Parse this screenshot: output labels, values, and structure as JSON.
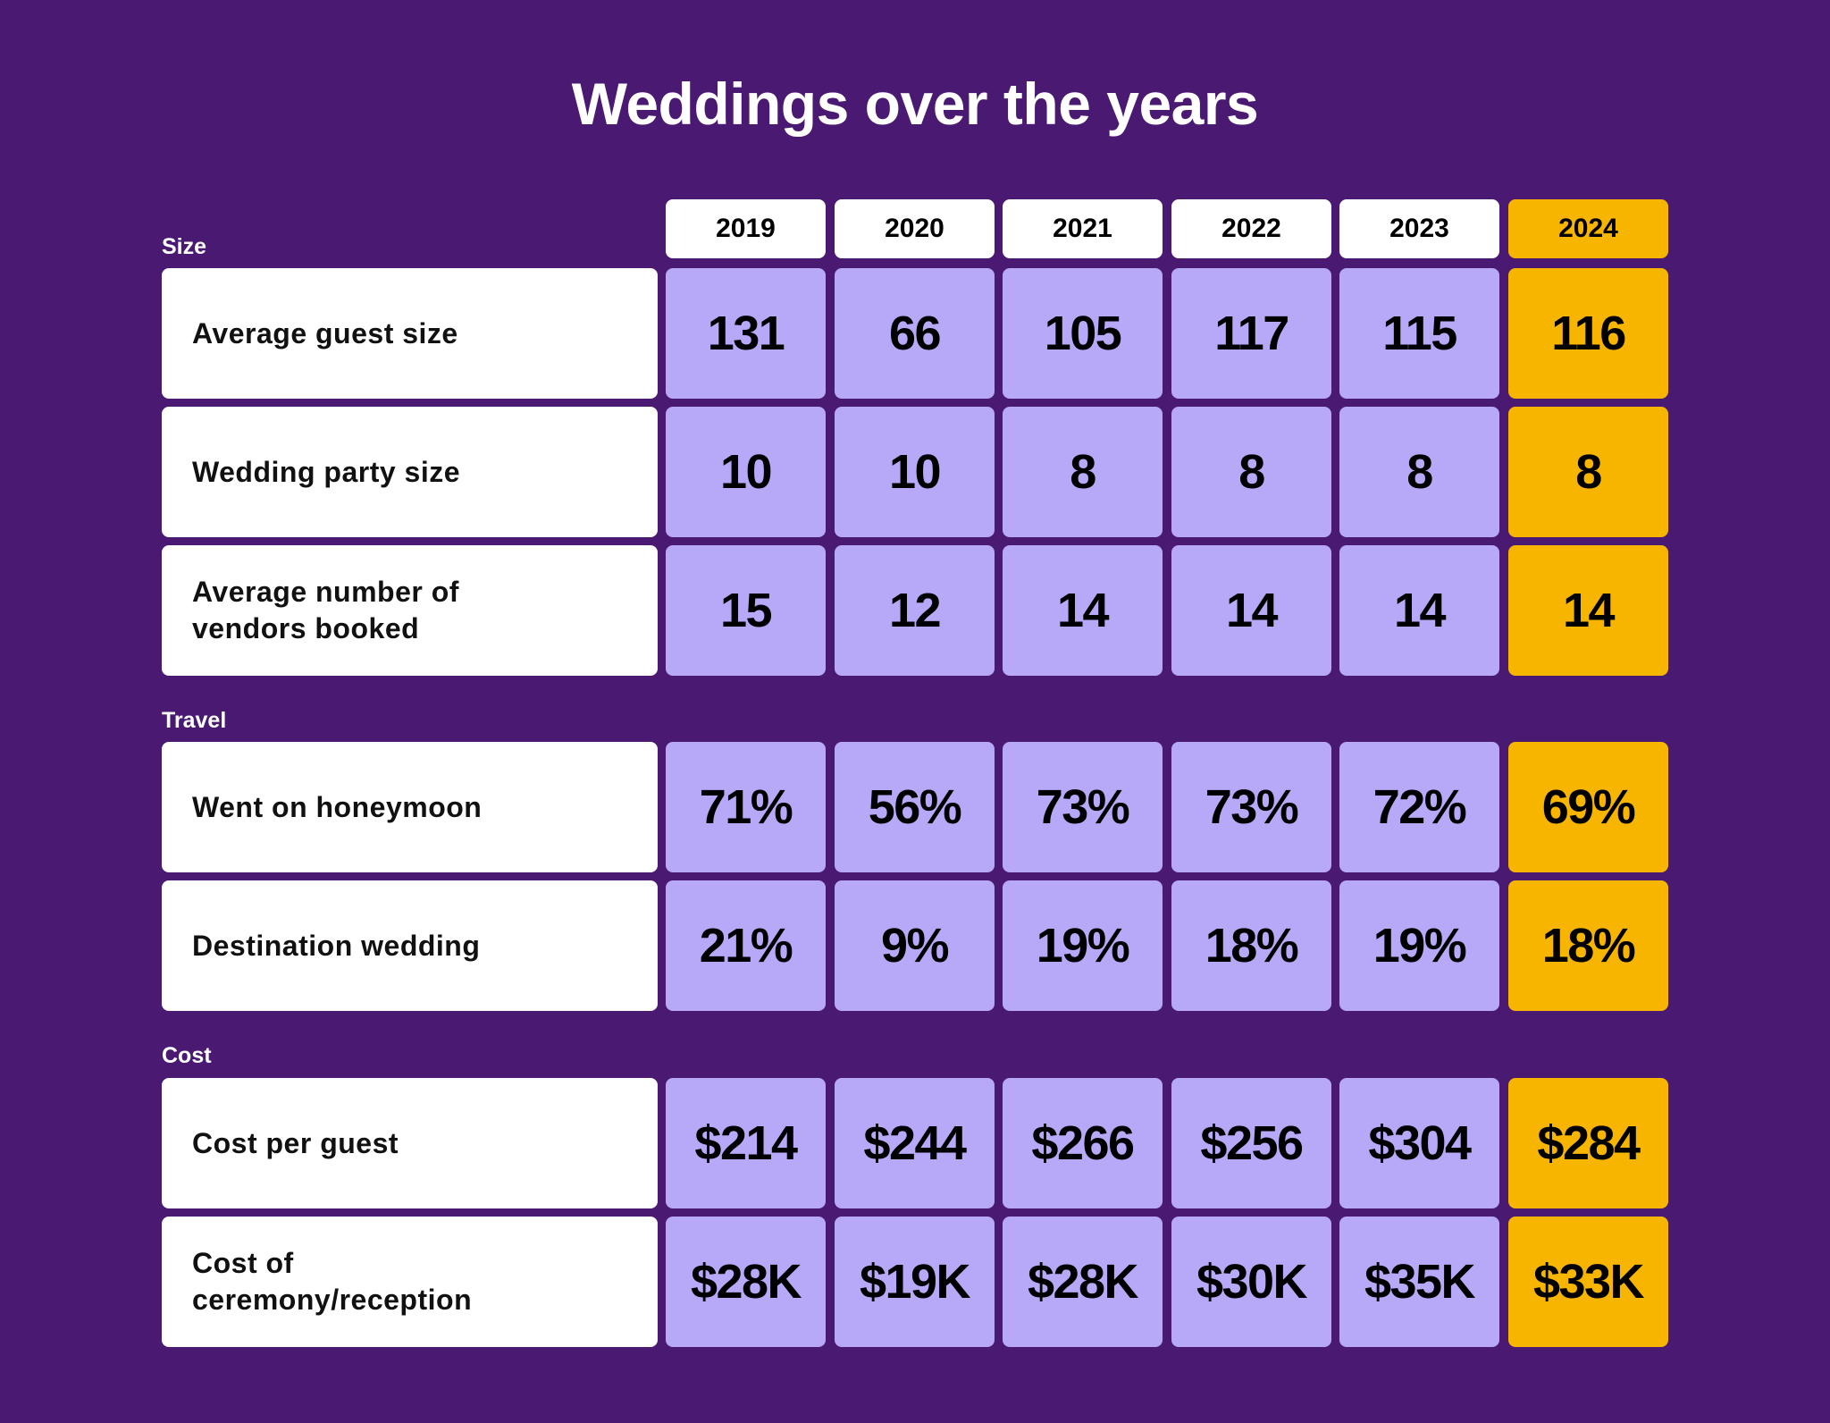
{
  "title": "Weddings over the years",
  "colors": {
    "background": "#4a1a73",
    "cell": "#b8a8f8",
    "highlight": "#f7b500",
    "label_box": "#ffffff"
  },
  "chart_data": {
    "type": "table",
    "title": "Weddings over the years",
    "columns": [
      "2019",
      "2020",
      "2021",
      "2022",
      "2023",
      "2024"
    ],
    "highlight_column": "2024",
    "sections": [
      {
        "name": "Size",
        "rows": [
          {
            "label": "Average guest size",
            "values": [
              "131",
              "66",
              "105",
              "117",
              "115",
              "116"
            ]
          },
          {
            "label": "Wedding party size",
            "values": [
              "10",
              "10",
              "8",
              "8",
              "8",
              "8"
            ]
          },
          {
            "label": "Average number of vendors booked",
            "values": [
              "15",
              "12",
              "14",
              "14",
              "14",
              "14"
            ]
          }
        ]
      },
      {
        "name": "Travel",
        "rows": [
          {
            "label": "Went on honeymoon",
            "values": [
              "71%",
              "56%",
              "73%",
              "73%",
              "72%",
              "69%"
            ]
          },
          {
            "label": "Destination wedding",
            "values": [
              "21%",
              "9%",
              "19%",
              "18%",
              "19%",
              "18%"
            ]
          }
        ]
      },
      {
        "name": "Cost",
        "rows": [
          {
            "label": "Cost per guest",
            "values": [
              "$214",
              "$244",
              "$266",
              "$256",
              "$304",
              "$284"
            ]
          },
          {
            "label": "Cost of ceremony/reception",
            "values": [
              "$28K",
              "$19K",
              "$28K",
              "$30K",
              "$35K",
              "$33K"
            ]
          }
        ]
      }
    ]
  }
}
